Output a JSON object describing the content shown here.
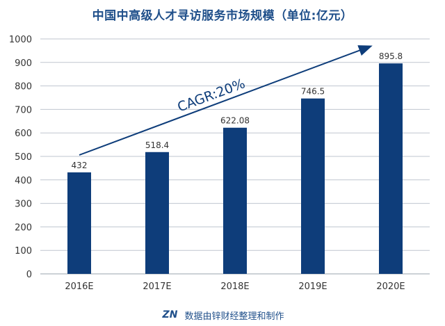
{
  "chart_data": {
    "type": "bar",
    "title": "中国中高级人才寻访服务市场规模（单位:亿元）",
    "categories": [
      "2016E",
      "2017E",
      "2018E",
      "2019E",
      "2020E"
    ],
    "values": [
      432,
      518.4,
      622.08,
      746.5,
      895.8
    ],
    "value_labels": [
      "432",
      "518.4",
      "622.08",
      "746.5",
      "895.8"
    ],
    "yticks": [
      "0",
      "100",
      "200",
      "300",
      "400",
      "500",
      "600",
      "700",
      "800",
      "900",
      "1000"
    ],
    "ylim": [
      0,
      1000
    ],
    "xlabel": "",
    "ylabel": "",
    "grid": true,
    "annotation": "CAGR:20%",
    "colors": {
      "bar": "#0e3d7a",
      "grid": "#bfc6cf",
      "axis_text": "#333333",
      "trend": "#0e3d7a"
    }
  },
  "footer": {
    "logo_text": "ZN",
    "source": "数据由锌财经整理和制作"
  }
}
